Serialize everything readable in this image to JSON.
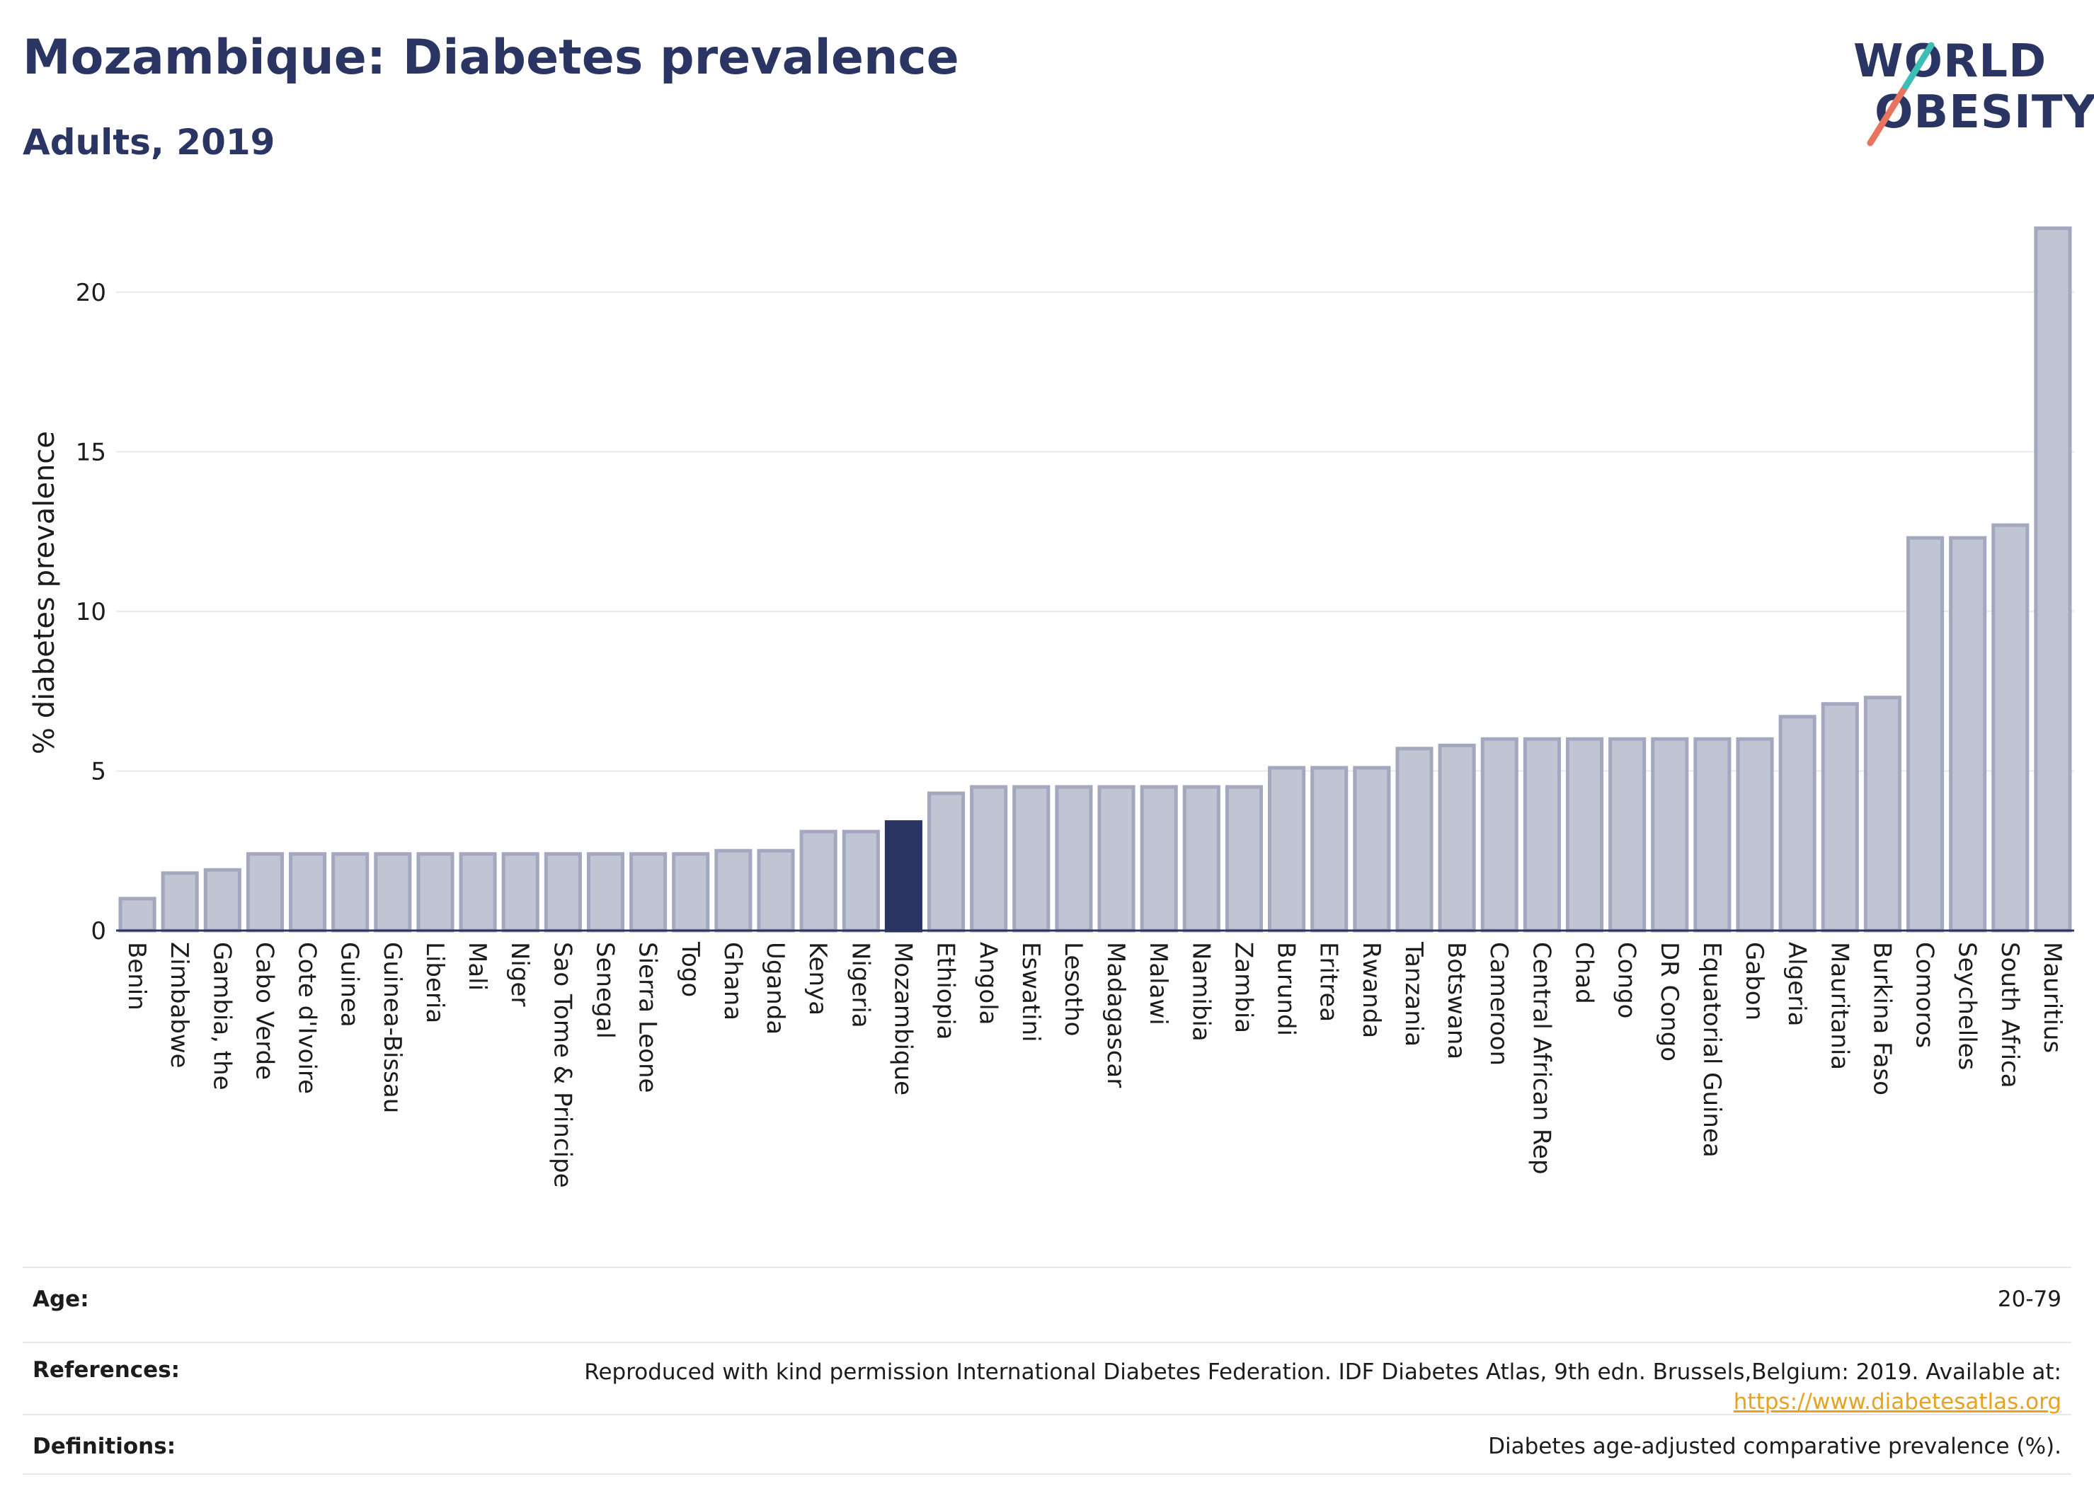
{
  "header": {
    "title": "Mozambique: Diabetes prevalence",
    "subtitle": "Adults, 2019",
    "logo_line1": "WORLD",
    "logo_line2": "OBESITY"
  },
  "colors": {
    "bar_fill": "#c0c4d3",
    "bar_stroke": "#a3a8be",
    "highlight": "#2a3563",
    "grid": "#e6e8ef",
    "axis": "#2a3563",
    "logo_teal": "#3dbdb6",
    "logo_coral": "#e8735e",
    "link": "#e8a21f"
  },
  "chart_data": {
    "type": "bar",
    "ylabel": "% diabetes prevalence",
    "ylim": [
      0,
      22.5
    ],
    "yticks": [
      0,
      5,
      10,
      15,
      20
    ],
    "grid": true,
    "highlight_category": "Mozambique",
    "categories": [
      "Benin",
      "Zimbabwe",
      "Gambia, the",
      "Cabo Verde",
      "Cote d'Ivoire",
      "Guinea",
      "Guinea-Bissau",
      "Liberia",
      "Mali",
      "Niger",
      "Sao Tome & Principe",
      "Senegal",
      "Sierra Leone",
      "Togo",
      "Ghana",
      "Uganda",
      "Kenya",
      "Nigeria",
      "Mozambique",
      "Ethiopia",
      "Angola",
      "Eswatini",
      "Lesotho",
      "Madagascar",
      "Malawi",
      "Namibia",
      "Zambia",
      "Burundi",
      "Eritrea",
      "Rwanda",
      "Tanzania",
      "Botswana",
      "Cameroon",
      "Central African Rep",
      "Chad",
      "Congo",
      "DR Congo",
      "Equatorial Guinea",
      "Gabon",
      "Algeria",
      "Mauritania",
      "Burkina Faso",
      "Comoros",
      "Seychelles",
      "South Africa",
      "Mauritius"
    ],
    "values": [
      1.0,
      1.8,
      1.9,
      2.4,
      2.4,
      2.4,
      2.4,
      2.4,
      2.4,
      2.4,
      2.4,
      2.4,
      2.4,
      2.4,
      2.5,
      2.5,
      3.1,
      3.1,
      3.4,
      4.3,
      4.5,
      4.5,
      4.5,
      4.5,
      4.5,
      4.5,
      4.5,
      5.1,
      5.1,
      5.1,
      5.7,
      5.8,
      6.0,
      6.0,
      6.0,
      6.0,
      6.0,
      6.0,
      6.0,
      6.7,
      7.1,
      7.3,
      12.3,
      12.3,
      12.7,
      22.0
    ]
  },
  "info": {
    "age_label": "Age:",
    "age_value": "20-79",
    "references_label": "References:",
    "references_text": "Reproduced with kind permission International Diabetes Federation. IDF Diabetes Atlas, 9th edn. Brussels,Belgium: 2019. Available at:",
    "references_link": "https://www.diabetesatlas.org",
    "definitions_label": "Definitions:",
    "definitions_text": "Diabetes age-adjusted comparative prevalence (%)."
  }
}
